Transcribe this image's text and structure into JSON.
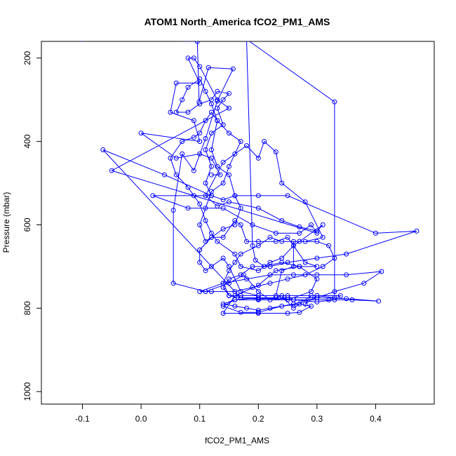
{
  "chart_data": {
    "type": "scatter",
    "title": "ATOM1 North_America fCO2_PM1_AMS",
    "xlabel": "fCO2_PM1_AMS",
    "ylabel": "Pressure (mbar)",
    "xlim": [
      -0.17,
      0.5
    ],
    "ylim": [
      1030,
      160
    ],
    "y_inverted": true,
    "x_ticks": [
      -0.1,
      0.0,
      0.1,
      0.2,
      0.3,
      0.4
    ],
    "x_tick_labels": [
      "-0.1",
      "0.0",
      "0.1",
      "0.2",
      "0.3",
      "0.4"
    ],
    "y_ticks": [
      200,
      400,
      600,
      800,
      1000
    ],
    "y_tick_labels": [
      "200",
      "400",
      "600",
      "800",
      "1000"
    ],
    "marker": "open-circle",
    "connected": true,
    "color": "#0000ff",
    "grid": false,
    "legend": "none",
    "series": [
      {
        "points": [
          [
            -0.1,
            155
          ],
          [
            0.096,
            160
          ],
          [
            0.099,
            305
          ],
          [
            0.115,
            223
          ],
          [
            0.157,
            226
          ],
          [
            0.13,
            303
          ],
          [
            0.11,
            393
          ],
          [
            0.09,
            470
          ],
          [
            0.07,
            430
          ],
          [
            0.055,
            565
          ],
          [
            0.055,
            740
          ],
          [
            0.11,
            760
          ],
          [
            0.15,
            740
          ],
          [
            0.175,
            720
          ],
          [
            0.2,
            760
          ],
          [
            0.22,
            780
          ],
          [
            0.24,
            770
          ],
          [
            0.26,
            800
          ],
          [
            0.29,
            770
          ],
          [
            0.28,
            790
          ],
          [
            0.3,
            770
          ],
          [
            0.33,
            775
          ],
          [
            0.33,
            305
          ],
          [
            0.18,
            155
          ],
          [
            0.19,
            650
          ],
          [
            0.195,
            685
          ],
          [
            0.21,
            700
          ],
          [
            0.24,
            690
          ],
          [
            0.27,
            700
          ],
          [
            0.3,
            730
          ],
          [
            0.29,
            760
          ],
          [
            0.25,
            780
          ],
          [
            0.2,
            775
          ],
          [
            0.16,
            780
          ],
          [
            0.14,
            795
          ],
          [
            0.17,
            810
          ],
          [
            0.2,
            810
          ],
          [
            0.24,
            795
          ],
          [
            0.27,
            790
          ],
          [
            0.29,
            795
          ],
          [
            0.27,
            810
          ],
          [
            0.25,
            812
          ],
          [
            0.2,
            812
          ],
          [
            0.14,
            812
          ],
          [
            0.16,
            770
          ],
          [
            0.2,
            745
          ],
          [
            0.23,
            710
          ],
          [
            0.27,
            700
          ],
          [
            0.3,
            700
          ],
          [
            0.28,
            690
          ],
          [
            0.26,
            650
          ],
          [
            0.31,
            600
          ],
          [
            0.3,
            615
          ],
          [
            0.27,
            605
          ],
          [
            0.24,
            590
          ],
          [
            0.2,
            560
          ],
          [
            0.15,
            545
          ],
          [
            0.13,
            555
          ],
          [
            0.11,
            530
          ],
          [
            0.14,
            450
          ],
          [
            0.18,
            410
          ],
          [
            0.2,
            440
          ],
          [
            0.21,
            400
          ],
          [
            0.23,
            425
          ],
          [
            0.24,
            500
          ],
          [
            0.28,
            545
          ],
          [
            0.31,
            630
          ],
          [
            0.28,
            640
          ],
          [
            0.26,
            640
          ],
          [
            0.26,
            700
          ],
          [
            0.24,
            710
          ],
          [
            0.23,
            770
          ],
          [
            0.2,
            770
          ],
          [
            0.17,
            760
          ],
          [
            0.15,
            700
          ],
          [
            0.14,
            680
          ],
          [
            0.12,
            700
          ],
          [
            0.11,
            710
          ],
          [
            0.1,
            690
          ],
          [
            0.1,
            660
          ],
          [
            0.12,
            630
          ],
          [
            0.14,
            630
          ],
          [
            0.16,
            590
          ],
          [
            0.17,
            600
          ],
          [
            0.18,
            640
          ],
          [
            0.2,
            640
          ],
          [
            0.23,
            640
          ],
          [
            0.25,
            630
          ],
          [
            0.26,
            650
          ],
          [
            0.24,
            680
          ],
          [
            0.22,
            690
          ],
          [
            0.2,
            710
          ],
          [
            0.17,
            700
          ],
          [
            0.16,
            670
          ],
          [
            0.13,
            640
          ],
          [
            0.12,
            620
          ],
          [
            0.11,
            590
          ],
          [
            0.1,
            550
          ],
          [
            0.09,
            530
          ],
          [
            0.08,
            510
          ],
          [
            0.06,
            480
          ],
          [
            0.05,
            440
          ],
          [
            0.07,
            400
          ],
          [
            0.09,
            390
          ],
          [
            0.1,
            380
          ],
          [
            0.11,
            350
          ],
          [
            0.12,
            330
          ],
          [
            0.13,
            350
          ],
          [
            0.12,
            420
          ],
          [
            0.13,
            460
          ],
          [
            0.15,
            480
          ],
          [
            0.16,
            530
          ],
          [
            0.17,
            560
          ],
          [
            0.16,
            600
          ],
          [
            0.14,
            610
          ],
          [
            0.12,
            630
          ],
          [
            0.11,
            640
          ],
          [
            0.1,
            600
          ],
          [
            0.11,
            560
          ],
          [
            0.12,
            520
          ],
          [
            0.14,
            500
          ],
          [
            0.15,
            460
          ],
          [
            0.16,
            430
          ],
          [
            0.17,
            400
          ],
          [
            0.15,
            380
          ],
          [
            0.13,
            350
          ],
          [
            0.12,
            310
          ],
          [
            0.11,
            280
          ],
          [
            0.1,
            250
          ],
          [
            0.08,
            270
          ],
          [
            0.07,
            300
          ],
          [
            0.06,
            330
          ],
          [
            0.08,
            330
          ],
          [
            0.1,
            310
          ],
          [
            0.12,
            300
          ],
          [
            0.13,
            280
          ],
          [
            0.15,
            285
          ],
          [
            0.14,
            300
          ],
          [
            0.13,
            320
          ],
          [
            0.14,
            360
          ],
          [
            0.12,
            380
          ],
          [
            0.11,
            420
          ],
          [
            0.12,
            460
          ],
          [
            0.11,
            500
          ],
          [
            0.12,
            530
          ],
          [
            0.14,
            540
          ],
          [
            0.16,
            530
          ],
          [
            0.2,
            530
          ],
          [
            0.25,
            530
          ],
          [
            0.4,
            620
          ],
          [
            0.47,
            615
          ],
          [
            0.35,
            670
          ],
          [
            0.3,
            680
          ],
          [
            0.25,
            690
          ],
          [
            0.22,
            700
          ],
          [
            0.19,
            700
          ],
          [
            0.17,
            720
          ],
          [
            0.15,
            730
          ],
          [
            0.14,
            750
          ],
          [
            0.15,
            770
          ],
          [
            0.17,
            770
          ],
          [
            0.2,
            770
          ],
          [
            0.25,
            770
          ],
          [
            0.3,
            770
          ],
          [
            0.34,
            770
          ],
          [
            0.33,
            780
          ],
          [
            0.3,
            785
          ],
          [
            0.26,
            780
          ],
          [
            0.23,
            775
          ],
          [
            0.2,
            775
          ],
          [
            0.17,
            775
          ],
          [
            0.15,
            770
          ],
          [
            0.14,
            740
          ],
          [
            0.15,
            710
          ],
          [
            0.16,
            690
          ],
          [
            0.17,
            670
          ],
          [
            0.2,
            650
          ],
          [
            0.22,
            630
          ],
          [
            0.24,
            640
          ],
          [
            0.27,
            640
          ],
          [
            0.3,
            640
          ],
          [
            0.32,
            650
          ],
          [
            0.33,
            680
          ],
          [
            0.31,
            700
          ],
          [
            0.28,
            720
          ],
          [
            0.25,
            730
          ],
          [
            0.22,
            740
          ],
          [
            0.19,
            750
          ],
          [
            0.16,
            760
          ],
          [
            0.12,
            760
          ],
          [
            0.1,
            760
          ],
          [
            0.14,
            740
          ],
          [
            0.18,
            730
          ],
          [
            0.22,
            720
          ],
          [
            0.26,
            720
          ],
          [
            0.3,
            720
          ],
          [
            0.35,
            720
          ],
          [
            0.41,
            712
          ],
          [
            0.38,
            740
          ],
          [
            0.33,
            760
          ],
          [
            0.3,
            775
          ],
          [
            0.26,
            790
          ],
          [
            0.22,
            800
          ],
          [
            0.2,
            805
          ],
          [
            0.18,
            800
          ],
          [
            0.16,
            795
          ],
          [
            0.14,
            790
          ],
          [
            0.16,
            780
          ],
          [
            0.2,
            780
          ],
          [
            0.26,
            780
          ],
          [
            0.32,
            780
          ],
          [
            0.36,
            780
          ],
          [
            0.405,
            783
          ],
          [
            0.35,
            777
          ],
          [
            0.3,
            775
          ],
          [
            0.25,
            775
          ],
          [
            0.2,
            778
          ],
          [
            0.17,
            775
          ],
          [
            -0.065,
            420
          ],
          [
            0.04,
            480
          ],
          [
            0.12,
            530
          ],
          [
            0.02,
            530
          ],
          [
            0.08,
            560
          ],
          [
            0.14,
            560
          ],
          [
            0.19,
            600
          ],
          [
            0.23,
            620
          ],
          [
            0.27,
            620
          ],
          [
            0.29,
            600
          ],
          [
            0.3,
            620
          ],
          [
            -0.05,
            470
          ],
          [
            0.15,
            320
          ],
          [
            0.13,
            300
          ],
          [
            0.1,
            220
          ],
          [
            0.09,
            200
          ],
          [
            0.08,
            200
          ],
          [
            0.1,
            260
          ],
          [
            0.06,
            260
          ],
          [
            0.05,
            330
          ],
          [
            0.09,
            350
          ],
          [
            0.1,
            400
          ],
          [
            0.0,
            380
          ],
          [
            0.06,
            440
          ],
          [
            0.1,
            430
          ],
          [
            0.12,
            440
          ],
          [
            0.135,
            480
          ],
          [
            0.12,
            480
          ]
        ]
      }
    ]
  }
}
